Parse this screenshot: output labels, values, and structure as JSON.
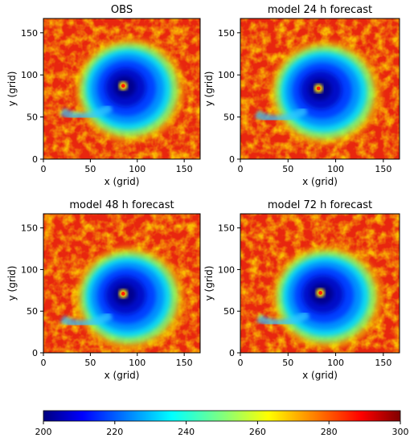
{
  "chart_data": {
    "type": "heatmap",
    "panels": [
      {
        "title": "OBS",
        "xlabel": "x (grid)",
        "ylabel": "y (grid)",
        "xlim": [
          0,
          167
        ],
        "ylim": [
          0,
          167
        ],
        "xticks": [
          0,
          50,
          100,
          150
        ],
        "yticks": [
          0,
          50,
          100,
          150
        ],
        "eye_center": [
          85,
          87
        ]
      },
      {
        "title": "model 24 h forecast",
        "xlabel": "x (grid)",
        "ylabel": "y (grid)",
        "xlim": [
          0,
          167
        ],
        "ylim": [
          0,
          167
        ],
        "xticks": [
          0,
          50,
          100,
          150
        ],
        "yticks": [
          0,
          50,
          100,
          150
        ],
        "eye_center": [
          82,
          84
        ]
      },
      {
        "title": "model 48 h forecast",
        "xlabel": "x (grid)",
        "ylabel": "y (grid)",
        "xlim": [
          0,
          167
        ],
        "ylim": [
          0,
          167
        ],
        "xticks": [
          0,
          50,
          100,
          150
        ],
        "yticks": [
          0,
          50,
          100,
          150
        ],
        "eye_center": [
          85,
          71
        ]
      },
      {
        "title": "model 72 h forecast",
        "xlabel": "x (grid)",
        "ylabel": "y (grid)",
        "xlim": [
          0,
          167
        ],
        "ylim": [
          0,
          167
        ],
        "xticks": [
          0,
          50,
          100,
          150
        ],
        "yticks": [
          0,
          50,
          100,
          150
        ],
        "eye_center": [
          84,
          72
        ]
      }
    ],
    "colorbar": {
      "colormap": "jet",
      "range": [
        200,
        300
      ],
      "ticks": [
        200,
        220,
        240,
        260,
        280,
        300
      ]
    }
  }
}
